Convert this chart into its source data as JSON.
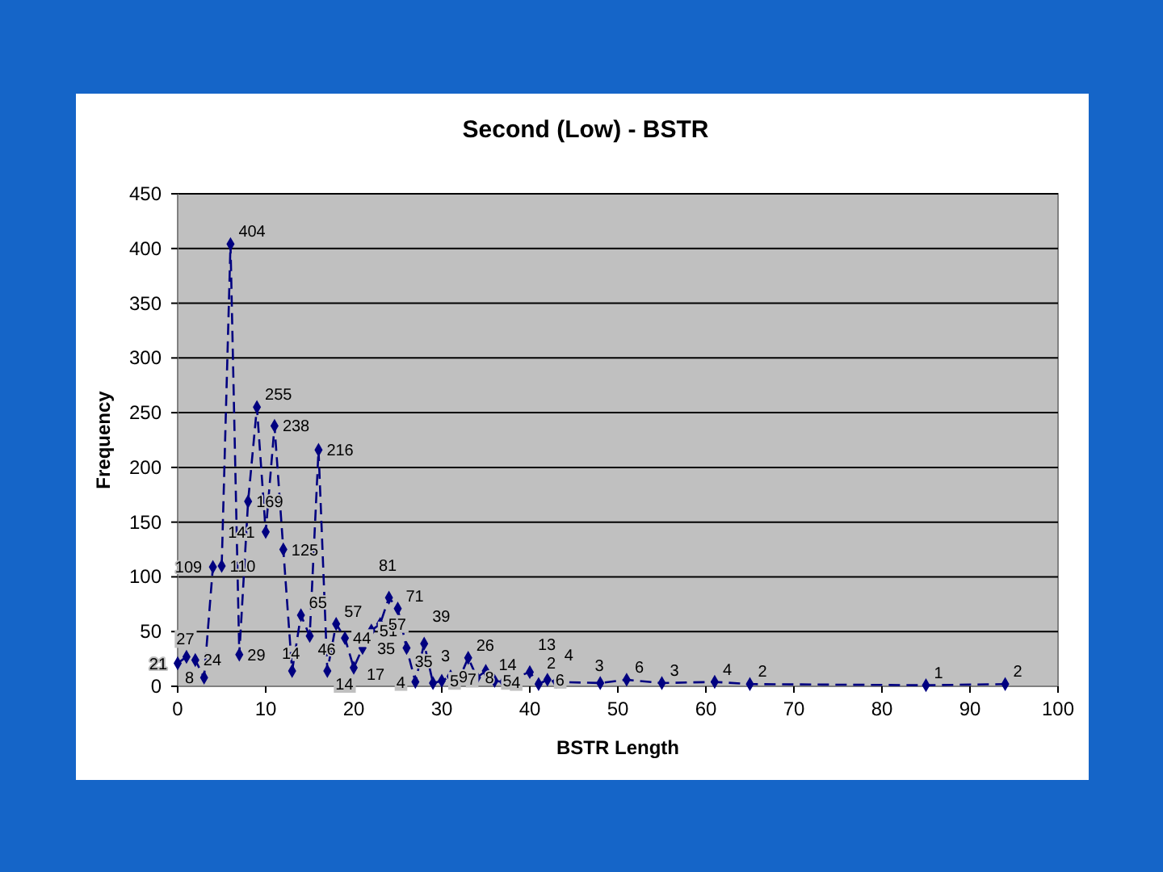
{
  "chart_data": {
    "type": "line",
    "title": "Second (Low) - BSTR",
    "xlabel": "BSTR Length",
    "ylabel": "Frequency",
    "x": [
      0,
      1,
      2,
      3,
      4,
      5,
      6,
      7,
      8,
      9,
      10,
      11,
      12,
      13,
      14,
      15,
      16,
      17,
      18,
      19,
      20,
      21,
      22,
      23,
      24,
      25,
      26,
      27,
      28,
      29,
      30,
      31,
      32,
      33,
      34,
      35,
      36,
      37,
      40,
      41,
      42,
      43,
      48,
      51,
      55,
      61,
      65,
      85,
      94
    ],
    "series": [
      {
        "color": "#000080",
        "values": [
          21,
          27,
          24,
          8,
          109,
          110,
          404,
          29,
          169,
          255,
          141,
          238,
          125,
          14,
          65,
          46,
          216,
          14,
          57,
          44,
          17,
          35,
          51,
          57,
          81,
          71,
          35,
          4,
          39,
          3,
          5,
          9,
          7,
          26,
          8,
          14,
          5,
          4,
          13,
          2,
          6,
          4,
          3,
          6,
          3,
          4,
          2,
          1,
          2
        ]
      }
    ],
    "xlim": [
      0,
      100
    ],
    "xticks": [
      0,
      10,
      20,
      30,
      40,
      50,
      60,
      70,
      80,
      90,
      100
    ],
    "ylim": [
      0,
      450
    ],
    "yticks": [
      0,
      50,
      100,
      150,
      200,
      250,
      300,
      350,
      400,
      450
    ],
    "grid": "y",
    "marker": "diamond",
    "line_style": "dashed",
    "data_labels": true
  }
}
